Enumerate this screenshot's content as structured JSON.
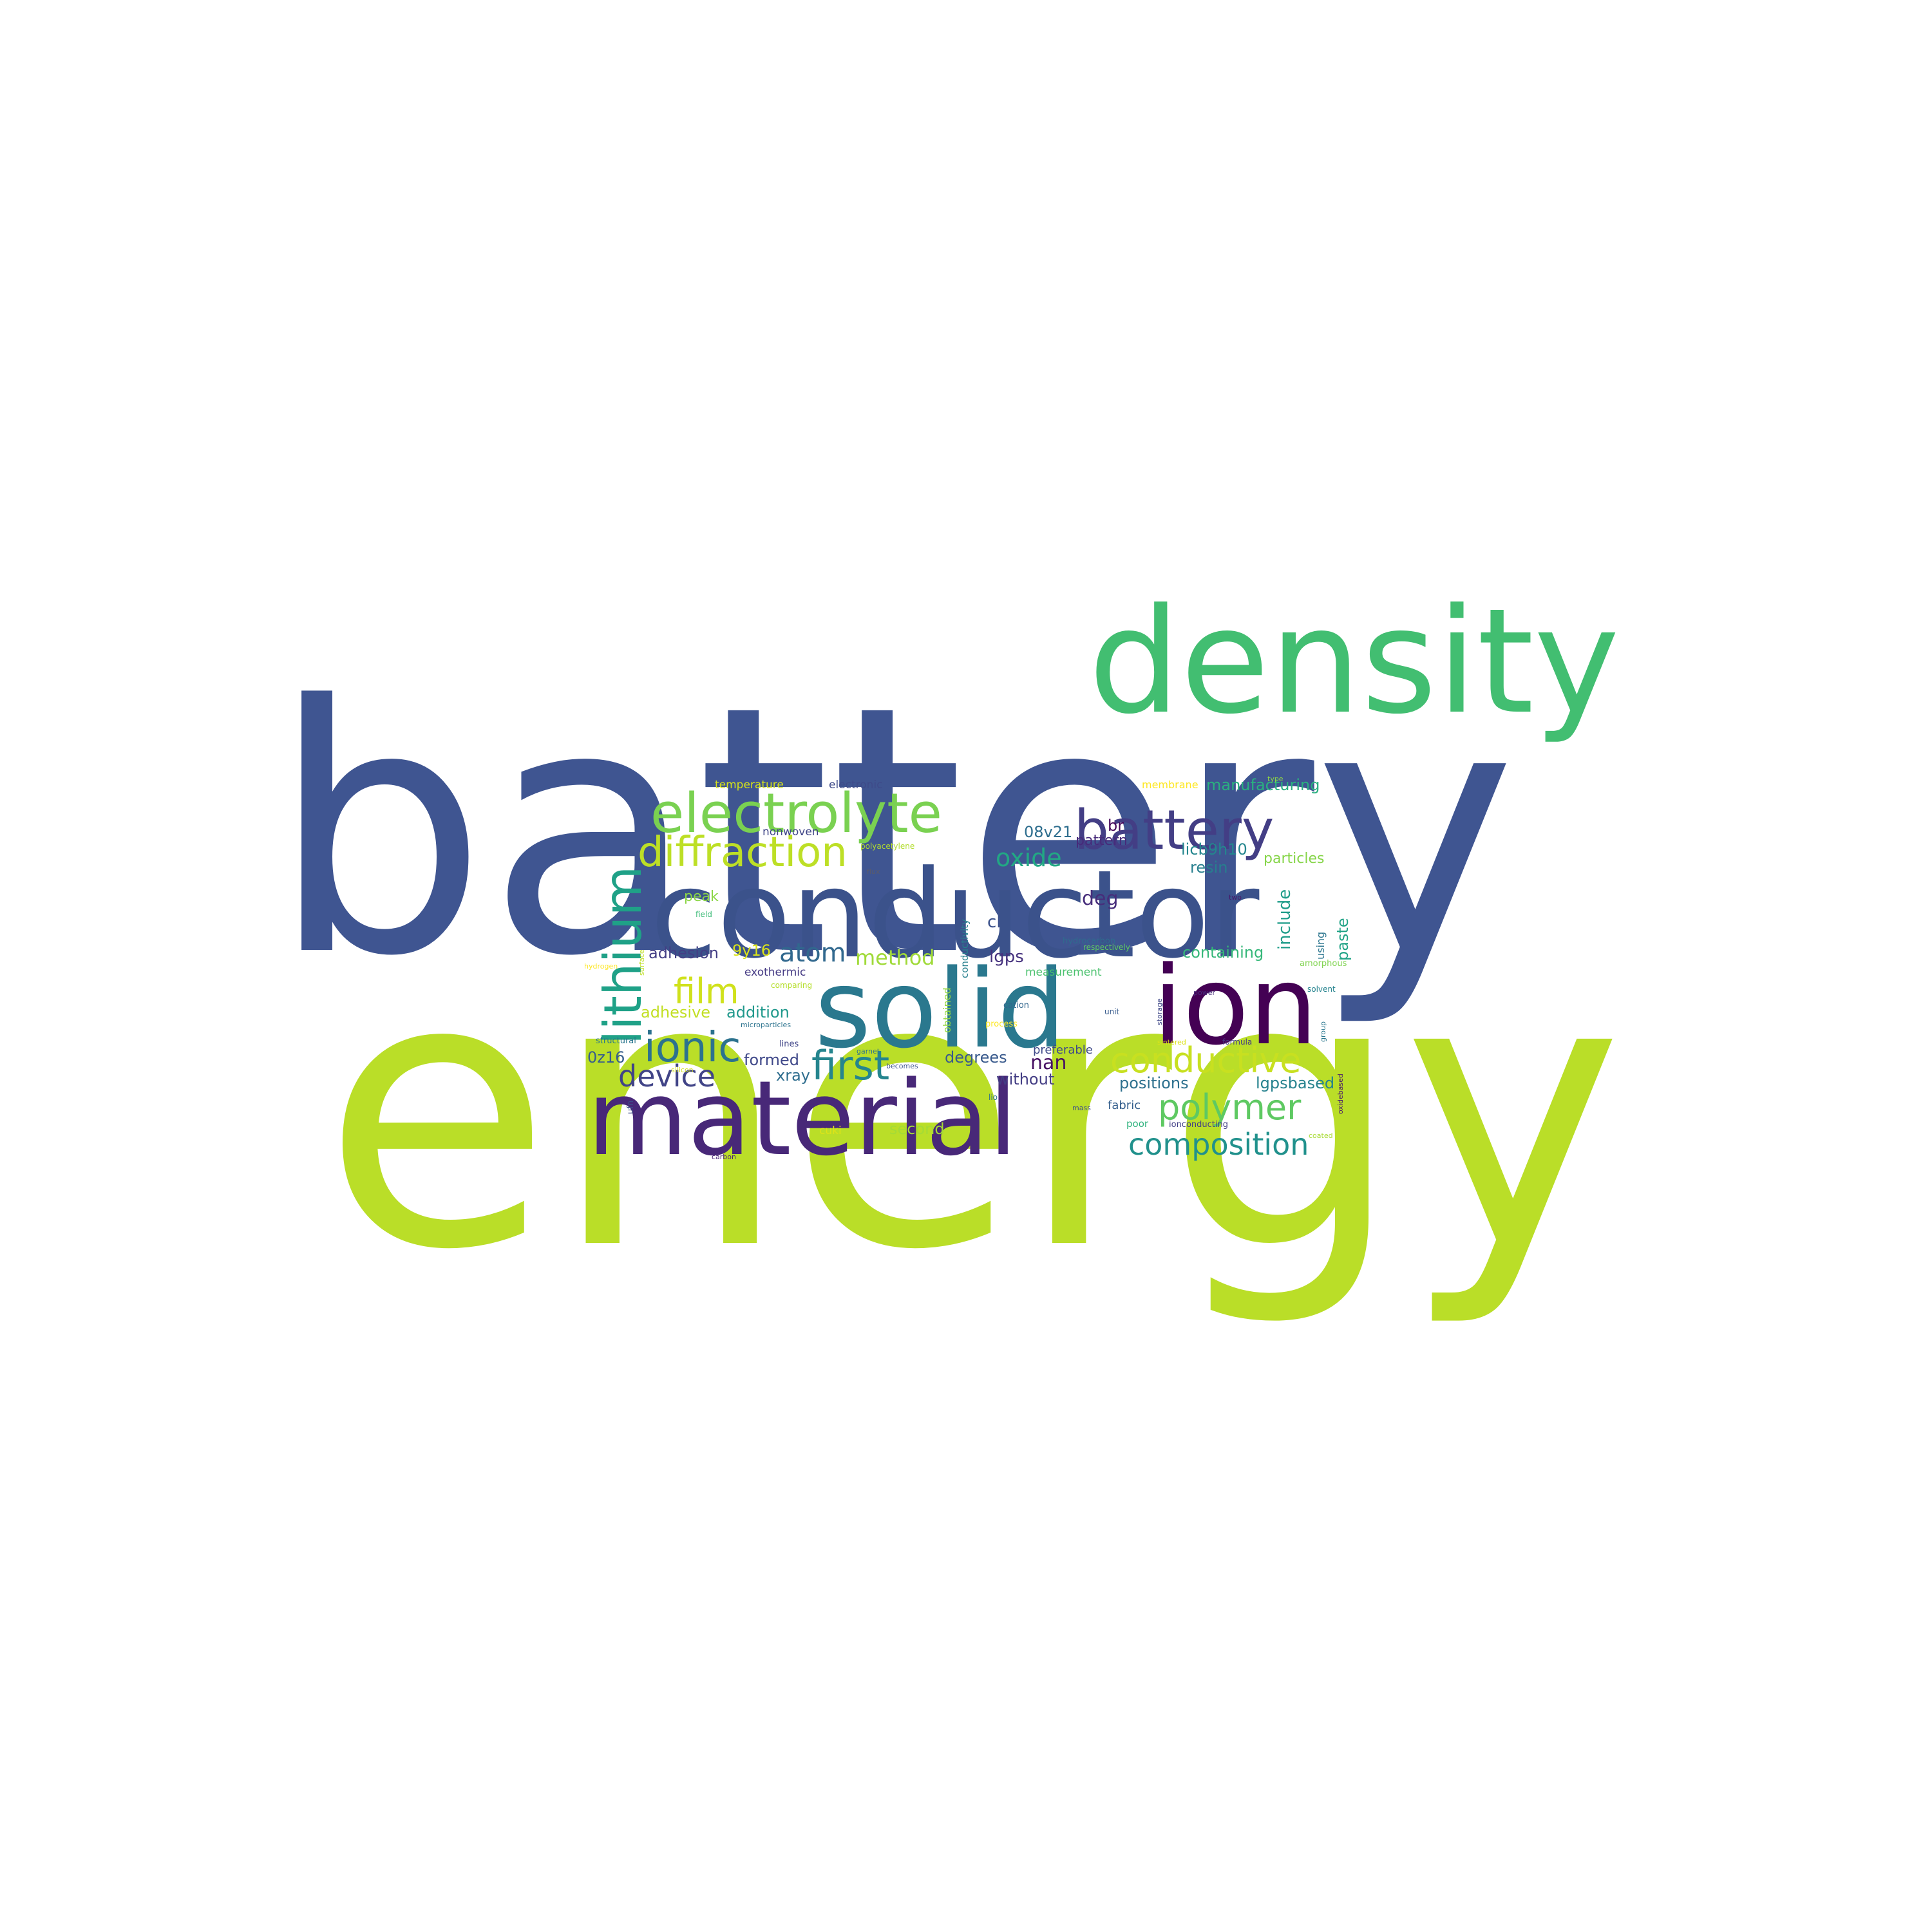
{
  "words": [
    {
      "text": "battery",
      "color": "#3f5591"
    },
    {
      "text": "energy",
      "color": "#bade28"
    },
    {
      "text": "density",
      "color": "#42be71"
    },
    {
      "text": "conductor",
      "color": "#3b528b"
    },
    {
      "text": "material",
      "color": "#482878"
    },
    {
      "text": "solid",
      "color": "#2a788e"
    },
    {
      "text": "ion",
      "color": "#440154"
    },
    {
      "text": "battery",
      "color": "#433e85"
    },
    {
      "text": "electrolyte",
      "color": "#7ad151"
    },
    {
      "text": "lithium",
      "color": "#1fa187"
    },
    {
      "text": "diffraction",
      "color": "#bddf26"
    },
    {
      "text": "ionic",
      "color": "#2c728e"
    },
    {
      "text": "conductive",
      "color": "#c8e020"
    },
    {
      "text": "polymer",
      "color": "#5ec962"
    },
    {
      "text": "first",
      "color": "#25858e"
    },
    {
      "text": "composition",
      "color": "#21918c"
    },
    {
      "text": "film",
      "color": "#d0e11c"
    },
    {
      "text": "device",
      "color": "#414487"
    },
    {
      "text": "oxide",
      "color": "#22a884"
    },
    {
      "text": "atom",
      "color": "#31688e"
    },
    {
      "text": "method",
      "color": "#a0da39"
    },
    {
      "text": "deg",
      "color": "#472d7b"
    },
    {
      "text": "nan",
      "color": "#471063"
    },
    {
      "text": "manufacturing",
      "color": "#2ab07f"
    },
    {
      "text": "include",
      "color": "#1e9c89"
    },
    {
      "text": "paste",
      "color": "#20a386"
    },
    {
      "text": "containing",
      "color": "#35b779"
    },
    {
      "text": "lgpsbased",
      "color": "#26828e"
    },
    {
      "text": "positions",
      "color": "#2d708e"
    },
    {
      "text": "second",
      "color": "#a5db36"
    },
    {
      "text": "without",
      "color": "#433d84"
    },
    {
      "text": "degrees",
      "color": "#38598c"
    },
    {
      "text": "preferable",
      "color": "#3e4989"
    },
    {
      "text": "fabric",
      "color": "#355f8d"
    },
    {
      "text": "cl",
      "color": "#3b518b"
    },
    {
      "text": "lgps",
      "color": "#46327e"
    },
    {
      "text": "08v21",
      "color": "#2e6e8e"
    },
    {
      "text": "pattern",
      "color": "#472a7a"
    },
    {
      "text": "licb9h10",
      "color": "#24868e"
    },
    {
      "text": "resin",
      "color": "#277f8e"
    },
    {
      "text": "particles",
      "color": "#86d549"
    },
    {
      "text": "br",
      "color": "#450559"
    },
    {
      "text": "membrane",
      "color": "#fde725"
    },
    {
      "text": "temperature",
      "color": "#d5e21a"
    },
    {
      "text": "electronic",
      "color": "#3e4a89"
    },
    {
      "text": "nonwoven",
      "color": "#404688"
    },
    {
      "text": "polyacetylene",
      "color": "#b2dd2d"
    },
    {
      "text": "flux",
      "color": "#5b5b6b"
    },
    {
      "text": "field",
      "color": "#3aba76"
    },
    {
      "text": "peak",
      "color": "#8bd646"
    },
    {
      "text": "adhesion",
      "color": "#433e85"
    },
    {
      "text": "9y16",
      "color": "#dae319"
    },
    {
      "text": "exothermic",
      "color": "#443983"
    },
    {
      "text": "adhesive",
      "color": "#c2df23"
    },
    {
      "text": "addition",
      "color": "#1f988b"
    },
    {
      "text": "microparticles",
      "color": "#2c738e"
    },
    {
      "text": "structural",
      "color": "#2a768e"
    },
    {
      "text": "0z16",
      "color": "#365d8d"
    },
    {
      "text": "formed",
      "color": "#3f4889"
    },
    {
      "text": "xray",
      "color": "#2e6d8e"
    },
    {
      "text": "lines",
      "color": "#404588"
    },
    {
      "text": "garnet",
      "color": "#2d718e"
    },
    {
      "text": "becomes",
      "color": "#3b518b"
    },
    {
      "text": "carbon",
      "color": "#482475"
    },
    {
      "text": "cuki",
      "color": "#dde318"
    },
    {
      "text": "ufn",
      "color": "#3e4c8a"
    },
    {
      "text": "obtained",
      "color": "#95d840"
    },
    {
      "text": "conductivity",
      "color": "#27808e"
    },
    {
      "text": "measurement",
      "color": "#4ac16d"
    },
    {
      "text": "cation",
      "color": "#31668e"
    },
    {
      "text": "process",
      "color": "#fde725"
    },
    {
      "text": "hydrocarbon",
      "color": "#2f6c8e"
    },
    {
      "text": "respectively",
      "color": "#5ec962"
    },
    {
      "text": "unit",
      "color": "#375b8d"
    },
    {
      "text": "storage",
      "color": "#3f4788"
    },
    {
      "text": "power",
      "color": "#472c7a"
    },
    {
      "text": "sintered",
      "color": "#dce319"
    },
    {
      "text": "formula",
      "color": "#443b84"
    },
    {
      "text": "ionconducting",
      "color": "#423f85"
    },
    {
      "text": "poor",
      "color": "#2db27d"
    },
    {
      "text": "mass",
      "color": "#3d4d8a"
    },
    {
      "text": "lio",
      "color": "#2c728e"
    },
    {
      "text": "two",
      "color": "#481769"
    },
    {
      "text": "type",
      "color": "#8fd744"
    },
    {
      "text": "using",
      "color": "#2b758e"
    },
    {
      "text": "solvent",
      "color": "#25838e"
    },
    {
      "text": "amorphous",
      "color": "#7fd34e"
    },
    {
      "text": "group",
      "color": "#2a778e"
    },
    {
      "text": "oxidebased",
      "color": "#481a6c"
    },
    {
      "text": "coated",
      "color": "#a8db34"
    },
    {
      "text": "hydrogen",
      "color": "#fde725"
    },
    {
      "text": "comparing",
      "color": "#b5de2b"
    },
    {
      "text": "surface",
      "color": "#c0df25"
    },
    {
      "text": "silicon",
      "color": "#d2e21b"
    }
  ]
}
